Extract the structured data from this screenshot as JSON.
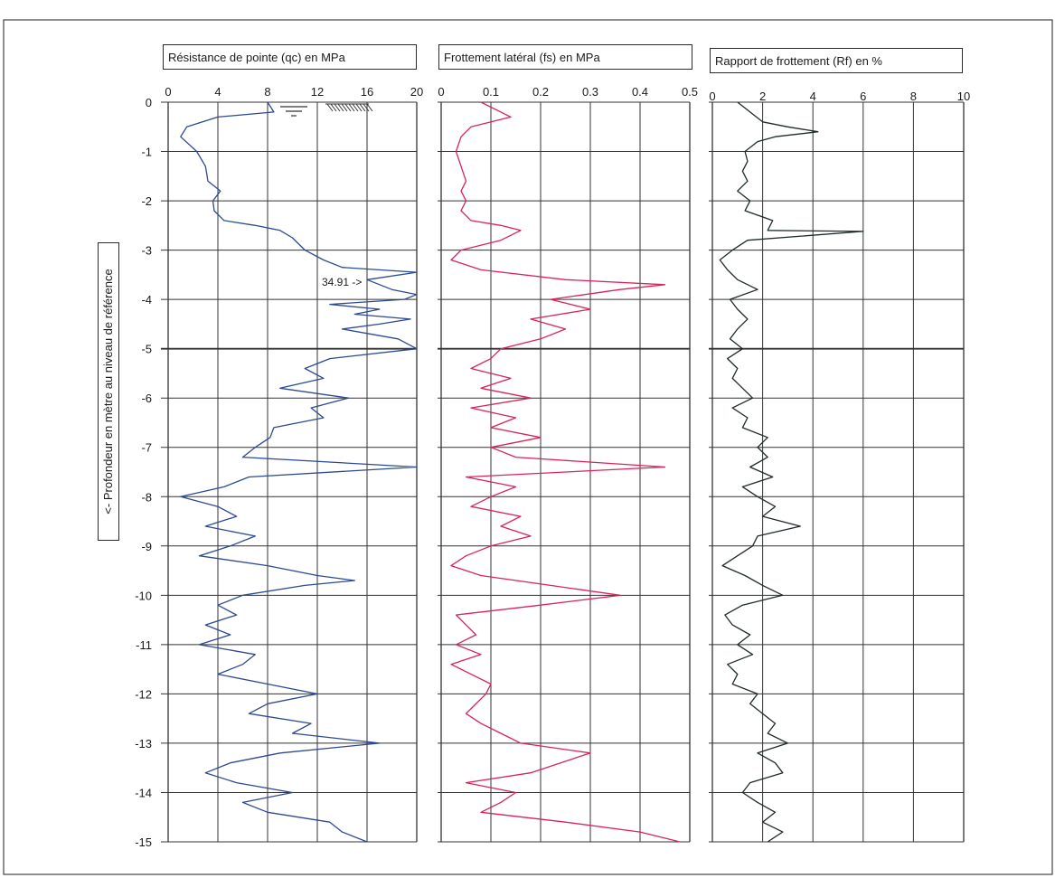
{
  "y_axis_label": "<- Profondeur en mètre au niveau de référence",
  "y_ticks": [
    "0",
    "-1",
    "-2",
    "-3",
    "-4",
    "-5",
    "-6",
    "-7",
    "-8",
    "-9",
    "-10",
    "-11",
    "-12",
    "-13",
    "-14",
    "-15"
  ],
  "annotation": "34.91 ->",
  "chart_data": [
    {
      "type": "line",
      "title": "Résistance de pointe (qc) en MPa",
      "xlabel": "",
      "ylabel": "<- Profondeur en mètre au niveau de référence",
      "xlim": [
        0,
        20
      ],
      "ylim": [
        -15,
        0
      ],
      "x_ticks": [
        "0",
        "4",
        "8",
        "12",
        "16",
        "20"
      ],
      "grid": true,
      "color": "#2b4a93",
      "series": [
        {
          "y": [
            0,
            -0.2,
            -0.3,
            -0.5,
            -0.7,
            -1.0,
            -1.3,
            -1.6,
            -1.8,
            -2.0,
            -2.2,
            -2.4,
            -2.5,
            -2.6,
            -2.75,
            -3.0,
            -3.2,
            -3.35,
            -3.45,
            -3.6,
            -3.8,
            -3.9,
            -4.0,
            -4.1,
            -4.2,
            -4.3,
            -4.4,
            -4.5,
            -4.6,
            -4.8,
            -5.0,
            -5.2,
            -5.4,
            -5.6,
            -5.8,
            -6.0,
            -6.2,
            -6.4,
            -6.6,
            -6.8,
            -7.0,
            -7.2,
            -7.4,
            -7.6,
            -7.8,
            -8.0,
            -8.2,
            -8.4,
            -8.6,
            -8.8,
            -9.0,
            -9.2,
            -9.4,
            -9.6,
            -9.7,
            -9.8,
            -10.0,
            -10.2,
            -10.4,
            -10.6,
            -10.8,
            -11.0,
            -11.2,
            -11.4,
            -11.6,
            -11.8,
            -12.0,
            -12.2,
            -12.4,
            -12.6,
            -12.8,
            -13.0,
            -13.2,
            -13.4,
            -13.6,
            -13.8,
            -14.0,
            -14.2,
            -14.4,
            -14.6,
            -14.8,
            -15.0
          ],
          "x": [
            8.0,
            8.5,
            4.0,
            1.5,
            1.0,
            2.3,
            3.0,
            3.2,
            4.2,
            3.6,
            3.7,
            4.5,
            7.0,
            9.0,
            10.0,
            11.0,
            12.5,
            14.0,
            20.0,
            16.0,
            18.0,
            20.0,
            19.0,
            13.0,
            17.0,
            15.0,
            19.5,
            17.0,
            14.0,
            18.5,
            20.0,
            13.0,
            11.0,
            12.5,
            9.0,
            14.5,
            11.5,
            12.5,
            8.5,
            8.2,
            7.0,
            6.0,
            20.0,
            6.5,
            4.5,
            1.0,
            4.0,
            5.5,
            3.0,
            7.0,
            5.0,
            2.5,
            8.0,
            12.0,
            15.0,
            11.0,
            6.0,
            4.0,
            5.5,
            3.0,
            5.0,
            2.5,
            7.0,
            6.0,
            4.0,
            8.0,
            12.0,
            8.0,
            6.5,
            11.5,
            10.0,
            17.0,
            9.0,
            5.0,
            3.0,
            5.5,
            10.0,
            6.0,
            8.0,
            13.0,
            14.0,
            16.0
          ]
        }
      ]
    },
    {
      "type": "line",
      "title": "Frottement latéral (fs) en MPa",
      "xlabel": "",
      "ylabel": "",
      "xlim": [
        0,
        0.5
      ],
      "ylim": [
        -15,
        0
      ],
      "x_ticks": [
        "0",
        "0.1",
        "0.2",
        "0.3",
        "0.4",
        "0.5"
      ],
      "grid": true,
      "color": "#d8245a",
      "series": [
        {
          "y": [
            0,
            -0.2,
            -0.3,
            -0.5,
            -0.7,
            -1.0,
            -1.3,
            -1.6,
            -1.8,
            -2.0,
            -2.2,
            -2.4,
            -2.5,
            -2.6,
            -2.8,
            -3.0,
            -3.2,
            -3.4,
            -3.6,
            -3.7,
            -3.8,
            -4.0,
            -4.2,
            -4.4,
            -4.6,
            -4.8,
            -5.0,
            -5.2,
            -5.4,
            -5.6,
            -5.8,
            -6.0,
            -6.2,
            -6.4,
            -6.6,
            -6.8,
            -7.0,
            -7.2,
            -7.4,
            -7.6,
            -7.8,
            -8.0,
            -8.2,
            -8.4,
            -8.6,
            -8.8,
            -9.0,
            -9.2,
            -9.4,
            -9.6,
            -9.8,
            -10.0,
            -10.2,
            -10.4,
            -10.6,
            -10.8,
            -11.0,
            -11.2,
            -11.4,
            -11.6,
            -11.8,
            -12.0,
            -12.2,
            -12.4,
            -12.6,
            -12.8,
            -13.0,
            -13.2,
            -13.4,
            -13.6,
            -13.8,
            -14.0,
            -14.2,
            -14.4,
            -14.6,
            -14.8,
            -15.0
          ],
          "x": [
            0.08,
            0.12,
            0.14,
            0.06,
            0.04,
            0.03,
            0.04,
            0.05,
            0.04,
            0.05,
            0.04,
            0.06,
            0.12,
            0.16,
            0.12,
            0.04,
            0.02,
            0.08,
            0.25,
            0.45,
            0.36,
            0.22,
            0.3,
            0.18,
            0.25,
            0.2,
            0.12,
            0.1,
            0.06,
            0.14,
            0.08,
            0.18,
            0.06,
            0.15,
            0.1,
            0.2,
            0.1,
            0.15,
            0.45,
            0.05,
            0.15,
            0.1,
            0.06,
            0.16,
            0.12,
            0.18,
            0.1,
            0.05,
            0.02,
            0.08,
            0.22,
            0.36,
            0.2,
            0.03,
            0.05,
            0.07,
            0.03,
            0.08,
            0.02,
            0.06,
            0.1,
            0.09,
            0.07,
            0.05,
            0.08,
            0.12,
            0.16,
            0.3,
            0.24,
            0.18,
            0.05,
            0.15,
            0.12,
            0.08,
            0.25,
            0.4,
            0.48
          ]
        }
      ]
    },
    {
      "type": "line",
      "title": "Rapport de frottement (Rf) en %",
      "xlabel": "",
      "ylabel": "",
      "xlim": [
        0,
        10
      ],
      "ylim": [
        -15,
        0
      ],
      "x_ticks": [
        "0",
        "2",
        "4",
        "6",
        "8",
        "10"
      ],
      "grid": true,
      "color": "#1f2a2c",
      "series": [
        {
          "y": [
            0,
            -0.2,
            -0.4,
            -0.5,
            -0.6,
            -0.7,
            -0.8,
            -1.0,
            -1.2,
            -1.4,
            -1.6,
            -1.8,
            -2.0,
            -2.2,
            -2.4,
            -2.6,
            -2.62,
            -2.8,
            -3.0,
            -3.2,
            -3.4,
            -3.6,
            -3.8,
            -4.0,
            -4.2,
            -4.4,
            -4.6,
            -4.8,
            -5.0,
            -5.2,
            -5.4,
            -5.6,
            -5.8,
            -6.0,
            -6.2,
            -6.4,
            -6.6,
            -6.8,
            -7.0,
            -7.2,
            -7.4,
            -7.6,
            -7.8,
            -8.0,
            -8.2,
            -8.4,
            -8.6,
            -8.8,
            -9.0,
            -9.2,
            -9.4,
            -9.6,
            -9.8,
            -10.0,
            -10.2,
            -10.4,
            -10.6,
            -10.8,
            -11.0,
            -11.2,
            -11.4,
            -11.6,
            -11.8,
            -12.0,
            -12.2,
            -12.4,
            -12.6,
            -12.8,
            -13.0,
            -13.2,
            -13.4,
            -13.6,
            -13.8,
            -14.0,
            -14.2,
            -14.4,
            -14.6,
            -14.8,
            -15.0
          ],
          "x": [
            1.0,
            1.5,
            2.0,
            3.0,
            4.2,
            2.5,
            1.8,
            1.3,
            1.4,
            1.2,
            1.4,
            1.0,
            1.5,
            1.3,
            2.4,
            2.2,
            6.0,
            1.4,
            0.8,
            0.3,
            0.6,
            1.0,
            1.8,
            0.7,
            1.0,
            1.4,
            1.0,
            0.7,
            1.2,
            0.6,
            1.0,
            0.8,
            1.2,
            1.6,
            0.8,
            1.4,
            1.2,
            2.2,
            1.8,
            2.2,
            1.5,
            2.4,
            1.2,
            1.8,
            2.5,
            2.0,
            3.5,
            1.8,
            1.6,
            1.0,
            0.4,
            1.3,
            2.0,
            2.8,
            1.2,
            0.5,
            0.8,
            1.5,
            1.0,
            1.6,
            0.6,
            1.0,
            0.8,
            1.8,
            1.5,
            2.0,
            2.5,
            2.2,
            3.0,
            1.8,
            2.5,
            2.8,
            1.5,
            1.2,
            1.8,
            2.5,
            2.0,
            2.8,
            2.2
          ]
        }
      ]
    }
  ]
}
